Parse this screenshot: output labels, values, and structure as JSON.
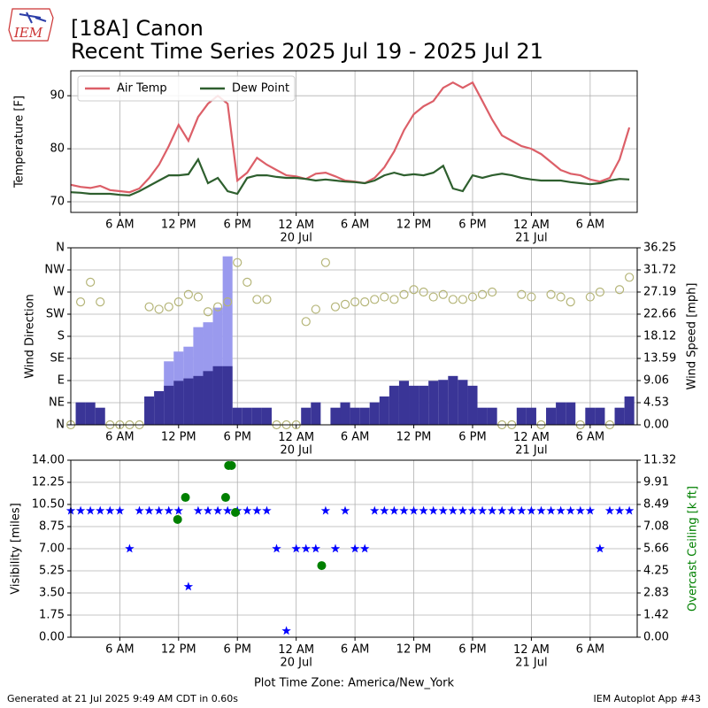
{
  "logo_text": "IEM",
  "title": "[18A] Canon",
  "subtitle": "Recent Time Series 2025 Jul 19 - 2025 Jul 21",
  "footer_left": "Generated at 21 Jul 2025 9:49 AM CDT in 0.60s",
  "footer_right": "IEM Autoplot App #43",
  "chart_data": [
    {
      "type": "line",
      "ylabel": "Temperature [F]",
      "grid": true,
      "legend": "upper left",
      "xlim": [
        1,
        58.8
      ],
      "xticks": [
        {
          "value": 6,
          "label": "6 AM"
        },
        {
          "value": 12,
          "label": "12 PM"
        },
        {
          "value": 18,
          "label": "6 PM"
        },
        {
          "value": 24,
          "label": "12 AM\n20 Jul"
        },
        {
          "value": 30,
          "label": "6 AM"
        },
        {
          "value": 36,
          "label": "12 PM"
        },
        {
          "value": 42,
          "label": "6 PM"
        },
        {
          "value": 48,
          "label": "12 AM\n21 Jul"
        },
        {
          "value": 54,
          "label": "6 AM"
        }
      ],
      "ylim": [
        68,
        94.7
      ],
      "yticks": [
        70,
        80,
        90
      ],
      "x": [
        1,
        2,
        3,
        4,
        5,
        6,
        7,
        8,
        9,
        10,
        11,
        12,
        13,
        14,
        15,
        16,
        17,
        18,
        19,
        20,
        21,
        22,
        23,
        24,
        25,
        26,
        27,
        28,
        29,
        30,
        31,
        32,
        33,
        34,
        35,
        36,
        37,
        38,
        39,
        40,
        41,
        42,
        43,
        44,
        45,
        46,
        47,
        48,
        49,
        50,
        51,
        52,
        53,
        54,
        55,
        56,
        57,
        58
      ],
      "series": [
        {
          "name": "Air Temp",
          "color": "#dc5f68",
          "values": [
            73.2,
            72.8,
            72.6,
            73,
            72.2,
            72,
            71.8,
            72.5,
            74.5,
            77,
            80.5,
            84.5,
            81.5,
            86,
            88.5,
            90,
            88.5,
            74,
            75.5,
            78.3,
            77,
            76,
            75,
            74.8,
            74.3,
            75.3,
            75.5,
            74.8,
            74,
            73.8,
            73.5,
            74.5,
            76.5,
            79.5,
            83.5,
            86.5,
            88,
            89,
            91.5,
            92.5,
            91.5,
            92.5,
            89,
            85.5,
            82.5,
            81.5,
            80.5,
            80,
            79,
            77.5,
            76,
            75.3,
            75,
            74.2,
            73.8,
            74.5,
            78,
            84
          ]
        },
        {
          "name": "Dew Point",
          "color": "#2e5f2e",
          "values": [
            71.8,
            71.7,
            71.5,
            71.5,
            71.5,
            71.3,
            71.2,
            72,
            73,
            74,
            75,
            75,
            75.2,
            78,
            73.5,
            74.5,
            72,
            71.5,
            74.5,
            75,
            75,
            74.7,
            74.5,
            74.5,
            74.3,
            74,
            74.2,
            74,
            73.8,
            73.7,
            73.5,
            74,
            75,
            75.5,
            75,
            75.2,
            75,
            75.5,
            76.8,
            72.5,
            72,
            75,
            74.5,
            75,
            75.3,
            75,
            74.5,
            74.2,
            74,
            74,
            74,
            73.7,
            73.5,
            73.3,
            73.5,
            74,
            74.3,
            74.2
          ]
        }
      ]
    },
    {
      "type": "combo",
      "ylabel": "Wind Direction",
      "y2label": "Wind Speed [mph]",
      "grid": true,
      "xlim": [
        1,
        58.8
      ],
      "xticks": [
        {
          "value": 6,
          "label": "6 AM"
        },
        {
          "value": 12,
          "label": "12 PM"
        },
        {
          "value": 18,
          "label": "6 PM"
        },
        {
          "value": 24,
          "label": "12 AM\n20 Jul"
        },
        {
          "value": 30,
          "label": "6 AM"
        },
        {
          "value": 36,
          "label": "12 PM"
        },
        {
          "value": 42,
          "label": "6 PM"
        },
        {
          "value": 48,
          "label": "12 AM\n21 Jul"
        },
        {
          "value": 54,
          "label": "6 AM"
        }
      ],
      "ylim": [
        0,
        360
      ],
      "yticks": [
        {
          "value": 0,
          "label": "N"
        },
        {
          "value": 45,
          "label": "NE"
        },
        {
          "value": 90,
          "label": "E"
        },
        {
          "value": 135,
          "label": "SE"
        },
        {
          "value": 180,
          "label": "S"
        },
        {
          "value": 225,
          "label": "SW"
        },
        {
          "value": 270,
          "label": "W"
        },
        {
          "value": 315,
          "label": "NW"
        },
        {
          "value": 360,
          "label": "N"
        }
      ],
      "y2lim": [
        0,
        36.25
      ],
      "y2ticks": [
        {
          "value": 0,
          "label": "0.00"
        },
        4.53,
        9.06,
        13.59,
        18.12,
        22.66,
        27.19,
        31.72,
        36.25
      ],
      "x": [
        1,
        2,
        3,
        4,
        5,
        6,
        7,
        8,
        9,
        10,
        11,
        12,
        13,
        14,
        15,
        16,
        17,
        18,
        19,
        20,
        21,
        22,
        23,
        24,
        25,
        26,
        27,
        28,
        29,
        30,
        31,
        32,
        33,
        34,
        35,
        36,
        37,
        38,
        39,
        40,
        41,
        42,
        43,
        44,
        45,
        46,
        47,
        48,
        49,
        50,
        51,
        52,
        53,
        54,
        55,
        56,
        57,
        58
      ],
      "series": [
        {
          "type": "bar",
          "axis": "y2",
          "color": "#9a9aee",
          "values": [
            null,
            null,
            null,
            null,
            null,
            null,
            null,
            null,
            null,
            null,
            13,
            15,
            16,
            20,
            21,
            24,
            34.5,
            null,
            null,
            null,
            null,
            null,
            null,
            null,
            null,
            null,
            null,
            null,
            null,
            null,
            null,
            null,
            null,
            null,
            null,
            null,
            null,
            null,
            null,
            null,
            null,
            null,
            null,
            null,
            null,
            null,
            null,
            null,
            null,
            null,
            null,
            null,
            null,
            null,
            null,
            null,
            null,
            null
          ]
        },
        {
          "type": "bar",
          "axis": "y2",
          "color": "#3a3597",
          "values": [
            0,
            4.6,
            4.6,
            3.5,
            0,
            0,
            0,
            0,
            5.8,
            6.9,
            8,
            9,
            9.5,
            10,
            11,
            12,
            12,
            3.5,
            3.5,
            3.5,
            3.5,
            0,
            0,
            0,
            3.5,
            4.6,
            0,
            3.5,
            4.6,
            3.5,
            3.5,
            4.6,
            5.8,
            8,
            9,
            8,
            8,
            9,
            9.2,
            10,
            9.2,
            8,
            3.5,
            3.5,
            0,
            0,
            3.5,
            3.5,
            0,
            3.5,
            4.6,
            4.6,
            0,
            3.5,
            3.5,
            0,
            3.5,
            5.8
          ]
        },
        {
          "type": "scatter",
          "axis": "y",
          "color": "#b5b578",
          "values": [
            0,
            250,
            290,
            250,
            0,
            0,
            0,
            0,
            240,
            235,
            240,
            250,
            265,
            260,
            230,
            240,
            250,
            330,
            290,
            255,
            255,
            0,
            0,
            0,
            210,
            235,
            330,
            240,
            245,
            250,
            250,
            255,
            260,
            255,
            265,
            275,
            270,
            260,
            265,
            255,
            255,
            260,
            265,
            270,
            0,
            0,
            265,
            260,
            0,
            265,
            260,
            250,
            0,
            260,
            270,
            0,
            275,
            300
          ]
        }
      ]
    },
    {
      "type": "scatter",
      "ylabel": "Visibility [miles]",
      "y2label": "Overcast Ceiling [k ft]",
      "y2label_color": "#008000",
      "xlabel": "Plot Time Zone: America/New_York",
      "grid": true,
      "xlim": [
        1,
        58.8
      ],
      "xticks": [
        {
          "value": 6,
          "label": "6 AM"
        },
        {
          "value": 12,
          "label": "12 PM"
        },
        {
          "value": 18,
          "label": "6 PM"
        },
        {
          "value": 24,
          "label": "12 AM\n20 Jul"
        },
        {
          "value": 30,
          "label": "6 AM"
        },
        {
          "value": 36,
          "label": "12 PM"
        },
        {
          "value": 42,
          "label": "6 PM"
        },
        {
          "value": 48,
          "label": "12 AM\n21 Jul"
        },
        {
          "value": 54,
          "label": "6 AM"
        }
      ],
      "ylim": [
        0,
        14
      ],
      "yticks": [
        {
          "value": 0,
          "label": "0.00"
        },
        1.75,
        {
          "value": 3.5,
          "label": "3.50"
        },
        5.25,
        {
          "value": 7,
          "label": "7.00"
        },
        8.75,
        {
          "value": 10.5,
          "label": "10.50"
        },
        12.25,
        {
          "value": 14,
          "label": "14.00"
        }
      ],
      "y2lim": [
        0,
        11.32
      ],
      "y2ticks": [
        {
          "value": 0,
          "label": "0.00"
        },
        1.42,
        2.83,
        4.25,
        5.66,
        7.08,
        8.49,
        9.91,
        11.32
      ],
      "x": [
        1,
        2,
        3,
        4,
        5,
        6,
        7,
        8,
        9,
        10,
        11,
        12,
        13,
        14,
        15,
        16,
        17,
        18,
        19,
        20,
        21,
        22,
        23,
        24,
        25,
        26,
        27,
        28,
        29,
        30,
        31,
        32,
        33,
        34,
        35,
        36,
        37,
        38,
        39,
        40,
        41,
        42,
        43,
        44,
        45,
        46,
        47,
        48,
        49,
        50,
        51,
        52,
        53,
        54,
        55,
        56,
        57,
        58
      ],
      "series": [
        {
          "marker": "star",
          "axis": "y",
          "color": "#0000ff",
          "values": [
            10,
            10,
            10,
            10,
            10,
            10,
            7,
            10,
            10,
            10,
            10,
            10,
            4,
            10,
            10,
            10,
            10,
            10,
            10,
            10,
            10,
            7,
            0.5,
            7,
            7,
            7,
            10,
            7,
            10,
            7,
            7,
            10,
            10,
            10,
            10,
            10,
            10,
            10,
            10,
            10,
            10,
            10,
            10,
            10,
            10,
            10,
            10,
            10,
            10,
            10,
            10,
            10,
            10,
            10,
            7,
            10,
            10,
            10
          ]
        },
        {
          "marker": "circle",
          "axis": "y2",
          "color": "#008000",
          "x": [
            11.9,
            12.7,
            16.8,
            17.1,
            17.4,
            17.8,
            26.6
          ],
          "values": [
            7.53,
            8.94,
            8.94,
            10.98,
            10.98,
            7.98,
            4.58
          ]
        }
      ]
    }
  ]
}
